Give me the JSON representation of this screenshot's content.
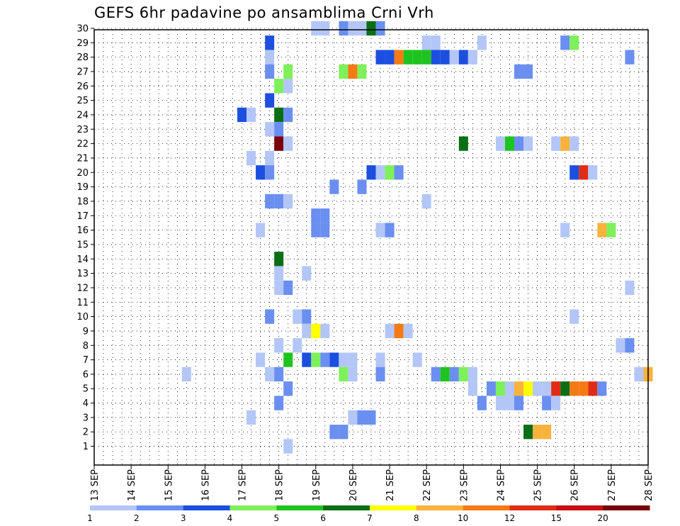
{
  "chart_data": {
    "type": "heatmap",
    "title": "GEFS 6hr padavine po ansamblima Crni Vrh",
    "x_tick_labels": [
      "13 SEP",
      "14 SEP",
      "15 SEP",
      "16 SEP",
      "17 SEP",
      "18 SEP",
      "19 SEP",
      "20 SEP",
      "21 SEP",
      "22 SEP",
      "23 SEP",
      "24 SEP",
      "25 SEP",
      "26 SEP",
      "27 SEP",
      "28 SEP"
    ],
    "y_tick_labels": [
      "1",
      "2",
      "3",
      "4",
      "5",
      "6",
      "7",
      "8",
      "9",
      "10",
      "11",
      "12",
      "13",
      "14",
      "15",
      "16",
      "17",
      "18",
      "19",
      "20",
      "21",
      "22",
      "23",
      "24",
      "25",
      "26",
      "27",
      "28",
      "29",
      "30"
    ],
    "x_range_days": [
      13,
      28
    ],
    "y_range_members": [
      0,
      30
    ],
    "time_step": "6hr",
    "grid": "dotted",
    "colorbar": {
      "labels": [
        "1",
        "2",
        "3",
        "4",
        "5",
        "6",
        "7",
        "8",
        "10",
        "12",
        "15",
        "20"
      ],
      "colors": [
        "#b3c6f7",
        "#6a8ff0",
        "#1c4fe0",
        "#7ef05a",
        "#1ec41e",
        "#0a6e14",
        "#ffff00",
        "#f9b23c",
        "#f57a14",
        "#e02c14",
        "#c80a14",
        "#7a0008"
      ]
    },
    "cells": [
      {
        "m": 30,
        "t": "19 SEP 00",
        "c": 0
      },
      {
        "m": 30,
        "t": "19 SEP 06",
        "c": 0
      },
      {
        "m": 30,
        "t": "19 SEP 18",
        "c": 1
      },
      {
        "m": 30,
        "t": "20 SEP 00",
        "c": 0
      },
      {
        "m": 30,
        "t": "20 SEP 06",
        "c": 0
      },
      {
        "m": 30,
        "t": "20 SEP 12",
        "c": 5
      },
      {
        "m": 30,
        "t": "20 SEP 18",
        "c": 1
      },
      {
        "m": 29,
        "t": "17 SEP 18",
        "c": 2
      },
      {
        "m": 29,
        "t": "22 SEP 00",
        "c": 0
      },
      {
        "m": 29,
        "t": "22 SEP 06",
        "c": 0
      },
      {
        "m": 29,
        "t": "23 SEP 12",
        "c": 0
      },
      {
        "m": 29,
        "t": "25 SEP 18",
        "c": 1
      },
      {
        "m": 29,
        "t": "26 SEP 00",
        "c": 3
      },
      {
        "m": 28,
        "t": "17 SEP 18",
        "c": 0
      },
      {
        "m": 28,
        "t": "20 SEP 18",
        "c": 2
      },
      {
        "m": 28,
        "t": "21 SEP 00",
        "c": 2
      },
      {
        "m": 28,
        "t": "21 SEP 06",
        "c": 8
      },
      {
        "m": 28,
        "t": "21 SEP 12",
        "c": 4
      },
      {
        "m": 28,
        "t": "21 SEP 18",
        "c": 4
      },
      {
        "m": 28,
        "t": "22 SEP 00",
        "c": 4
      },
      {
        "m": 28,
        "t": "22 SEP 06",
        "c": 2
      },
      {
        "m": 28,
        "t": "22 SEP 12",
        "c": 2
      },
      {
        "m": 28,
        "t": "22 SEP 18",
        "c": 0
      },
      {
        "m": 28,
        "t": "23 SEP 00",
        "c": 2
      },
      {
        "m": 28,
        "t": "23 SEP 06",
        "c": 0
      },
      {
        "m": 28,
        "t": "27 SEP 12",
        "c": 1
      },
      {
        "m": 27,
        "t": "17 SEP 18",
        "c": 1
      },
      {
        "m": 27,
        "t": "18 SEP 06",
        "c": 3
      },
      {
        "m": 27,
        "t": "19 SEP 18",
        "c": 3
      },
      {
        "m": 27,
        "t": "20 SEP 00",
        "c": 8
      },
      {
        "m": 27,
        "t": "20 SEP 06",
        "c": 3
      },
      {
        "m": 27,
        "t": "24 SEP 12",
        "c": 1
      },
      {
        "m": 27,
        "t": "24 SEP 18",
        "c": 1
      },
      {
        "m": 26,
        "t": "18 SEP 00",
        "c": 3
      },
      {
        "m": 26,
        "t": "18 SEP 06",
        "c": 0
      },
      {
        "m": 25,
        "t": "17 SEP 18",
        "c": 2
      },
      {
        "m": 24,
        "t": "17 SEP 00",
        "c": 2
      },
      {
        "m": 24,
        "t": "17 SEP 06",
        "c": 0
      },
      {
        "m": 24,
        "t": "18 SEP 00",
        "c": 5
      },
      {
        "m": 24,
        "t": "18 SEP 06",
        "c": 1
      },
      {
        "m": 23,
        "t": "17 SEP 18",
        "c": 0
      },
      {
        "m": 23,
        "t": "18 SEP 00",
        "c": 1
      },
      {
        "m": 22,
        "t": "18 SEP 00",
        "c": 11
      },
      {
        "m": 22,
        "t": "18 SEP 06",
        "c": 0
      },
      {
        "m": 22,
        "t": "23 SEP 00",
        "c": 5
      },
      {
        "m": 22,
        "t": "24 SEP 00",
        "c": 0
      },
      {
        "m": 22,
        "t": "24 SEP 06",
        "c": 4
      },
      {
        "m": 22,
        "t": "24 SEP 12",
        "c": 1
      },
      {
        "m": 22,
        "t": "24 SEP 18",
        "c": 0
      },
      {
        "m": 22,
        "t": "25 SEP 12",
        "c": 0
      },
      {
        "m": 22,
        "t": "25 SEP 18",
        "c": 7
      },
      {
        "m": 22,
        "t": "26 SEP 00",
        "c": 0
      },
      {
        "m": 21,
        "t": "17 SEP 06",
        "c": 0
      },
      {
        "m": 21,
        "t": "17 SEP 18",
        "c": 0
      },
      {
        "m": 20,
        "t": "17 SEP 12",
        "c": 2
      },
      {
        "m": 20,
        "t": "17 SEP 18",
        "c": 1
      },
      {
        "m": 20,
        "t": "20 SEP 12",
        "c": 2
      },
      {
        "m": 20,
        "t": "20 SEP 18",
        "c": 0
      },
      {
        "m": 20,
        "t": "21 SEP 00",
        "c": 3
      },
      {
        "m": 20,
        "t": "21 SEP 06",
        "c": 1
      },
      {
        "m": 20,
        "t": "26 SEP 00",
        "c": 2
      },
      {
        "m": 20,
        "t": "26 SEP 06",
        "c": 9
      },
      {
        "m": 20,
        "t": "26 SEP 12",
        "c": 0
      },
      {
        "m": 19,
        "t": "19 SEP 12",
        "c": 1
      },
      {
        "m": 19,
        "t": "20 SEP 06",
        "c": 1
      },
      {
        "m": 18,
        "t": "17 SEP 18",
        "c": 1
      },
      {
        "m": 18,
        "t": "18 SEP 00",
        "c": 1
      },
      {
        "m": 18,
        "t": "18 SEP 06",
        "c": 0
      },
      {
        "m": 18,
        "t": "22 SEP 00",
        "c": 0
      },
      {
        "m": 17,
        "t": "19 SEP 00",
        "c": 1
      },
      {
        "m": 17,
        "t": "19 SEP 06",
        "c": 1
      },
      {
        "m": 16,
        "t": "17 SEP 12",
        "c": 0
      },
      {
        "m": 16,
        "t": "19 SEP 00",
        "c": 1
      },
      {
        "m": 16,
        "t": "19 SEP 06",
        "c": 1
      },
      {
        "m": 16,
        "t": "20 SEP 18",
        "c": 0
      },
      {
        "m": 16,
        "t": "21 SEP 00",
        "c": 1
      },
      {
        "m": 16,
        "t": "26 SEP 18",
        "c": 7
      },
      {
        "m": 16,
        "t": "27 SEP 00",
        "c": 3
      },
      {
        "m": 16,
        "t": "25 SEP 18",
        "c": 0
      },
      {
        "m": 14,
        "t": "18 SEP 00",
        "c": 5
      },
      {
        "m": 13,
        "t": "18 SEP 00",
        "c": 0
      },
      {
        "m": 13,
        "t": "18 SEP 18",
        "c": 0
      },
      {
        "m": 12,
        "t": "18 SEP 00",
        "c": 0
      },
      {
        "m": 12,
        "t": "18 SEP 06",
        "c": 1
      },
      {
        "m": 12,
        "t": "27 SEP 12",
        "c": 0
      },
      {
        "m": 10,
        "t": "17 SEP 18",
        "c": 1
      },
      {
        "m": 10,
        "t": "18 SEP 12",
        "c": 0
      },
      {
        "m": 10,
        "t": "18 SEP 18",
        "c": 1
      },
      {
        "m": 10,
        "t": "26 SEP 00",
        "c": 0
      },
      {
        "m": 9,
        "t": "18 SEP 18",
        "c": 0
      },
      {
        "m": 9,
        "t": "19 SEP 00",
        "c": 6
      },
      {
        "m": 9,
        "t": "19 SEP 06",
        "c": 0
      },
      {
        "m": 9,
        "t": "21 SEP 00",
        "c": 0
      },
      {
        "m": 9,
        "t": "21 SEP 06",
        "c": 8
      },
      {
        "m": 9,
        "t": "21 SEP 12",
        "c": 0
      },
      {
        "m": 8,
        "t": "18 SEP 00",
        "c": 0
      },
      {
        "m": 8,
        "t": "18 SEP 12",
        "c": 0
      },
      {
        "m": 8,
        "t": "27 SEP 06",
        "c": 0
      },
      {
        "m": 8,
        "t": "27 SEP 12",
        "c": 1
      },
      {
        "m": 7,
        "t": "17 SEP 12",
        "c": 0
      },
      {
        "m": 7,
        "t": "18 SEP 06",
        "c": 4
      },
      {
        "m": 7,
        "t": "18 SEP 18",
        "c": 2
      },
      {
        "m": 7,
        "t": "19 SEP 00",
        "c": 3
      },
      {
        "m": 7,
        "t": "19 SEP 06",
        "c": 1
      },
      {
        "m": 7,
        "t": "19 SEP 12",
        "c": 2
      },
      {
        "m": 7,
        "t": "19 SEP 18",
        "c": 0
      },
      {
        "m": 7,
        "t": "20 SEP 00",
        "c": 0
      },
      {
        "m": 7,
        "t": "20 SEP 18",
        "c": 0
      },
      {
        "m": 7,
        "t": "21 SEP 18",
        "c": 0
      },
      {
        "m": 6,
        "t": "15 SEP 12",
        "c": 0
      },
      {
        "m": 6,
        "t": "17 SEP 18",
        "c": 0
      },
      {
        "m": 6,
        "t": "18 SEP 00",
        "c": 1
      },
      {
        "m": 6,
        "t": "19 SEP 18",
        "c": 3
      },
      {
        "m": 6,
        "t": "20 SEP 00",
        "c": 0
      },
      {
        "m": 6,
        "t": "20 SEP 18",
        "c": 1
      },
      {
        "m": 6,
        "t": "22 SEP 06",
        "c": 1
      },
      {
        "m": 6,
        "t": "22 SEP 12",
        "c": 4
      },
      {
        "m": 6,
        "t": "22 SEP 18",
        "c": 1
      },
      {
        "m": 6,
        "t": "23 SEP 00",
        "c": 3
      },
      {
        "m": 6,
        "t": "23 SEP 06",
        "c": 0
      },
      {
        "m": 6,
        "t": "27 SEP 18",
        "c": 0
      },
      {
        "m": 6,
        "t": "28 SEP 00",
        "c": 7
      },
      {
        "m": 5,
        "t": "18 SEP 06",
        "c": 1
      },
      {
        "m": 5,
        "t": "23 SEP 06",
        "c": 0
      },
      {
        "m": 5,
        "t": "23 SEP 18",
        "c": 1
      },
      {
        "m": 5,
        "t": "24 SEP 00",
        "c": 3
      },
      {
        "m": 5,
        "t": "24 SEP 06",
        "c": 0
      },
      {
        "m": 5,
        "t": "24 SEP 12",
        "c": 7
      },
      {
        "m": 5,
        "t": "24 SEP 18",
        "c": 6
      },
      {
        "m": 5,
        "t": "25 SEP 00",
        "c": 0
      },
      {
        "m": 5,
        "t": "25 SEP 06",
        "c": 0
      },
      {
        "m": 5,
        "t": "25 SEP 12",
        "c": 9
      },
      {
        "m": 5,
        "t": "25 SEP 18",
        "c": 5
      },
      {
        "m": 5,
        "t": "26 SEP 00",
        "c": 8
      },
      {
        "m": 5,
        "t": "26 SEP 06",
        "c": 8
      },
      {
        "m": 5,
        "t": "26 SEP 12",
        "c": 9
      },
      {
        "m": 5,
        "t": "26 SEP 18",
        "c": 1
      },
      {
        "m": 4,
        "t": "18 SEP 00",
        "c": 1
      },
      {
        "m": 4,
        "t": "23 SEP 12",
        "c": 1
      },
      {
        "m": 4,
        "t": "24 SEP 00",
        "c": 0
      },
      {
        "m": 4,
        "t": "24 SEP 06",
        "c": 0
      },
      {
        "m": 4,
        "t": "24 SEP 12",
        "c": 1
      },
      {
        "m": 4,
        "t": "25 SEP 06",
        "c": 1
      },
      {
        "m": 4,
        "t": "25 SEP 12",
        "c": 0
      },
      {
        "m": 3,
        "t": "17 SEP 06",
        "c": 0
      },
      {
        "m": 3,
        "t": "20 SEP 00",
        "c": 0
      },
      {
        "m": 3,
        "t": "20 SEP 06",
        "c": 1
      },
      {
        "m": 3,
        "t": "20 SEP 12",
        "c": 1
      },
      {
        "m": 2,
        "t": "19 SEP 12",
        "c": 1
      },
      {
        "m": 2,
        "t": "19 SEP 18",
        "c": 1
      },
      {
        "m": 2,
        "t": "24 SEP 18",
        "c": 5
      },
      {
        "m": 2,
        "t": "25 SEP 00",
        "c": 7
      },
      {
        "m": 2,
        "t": "25 SEP 06",
        "c": 7
      },
      {
        "m": 1,
        "t": "18 SEP 06",
        "c": 0
      }
    ]
  }
}
